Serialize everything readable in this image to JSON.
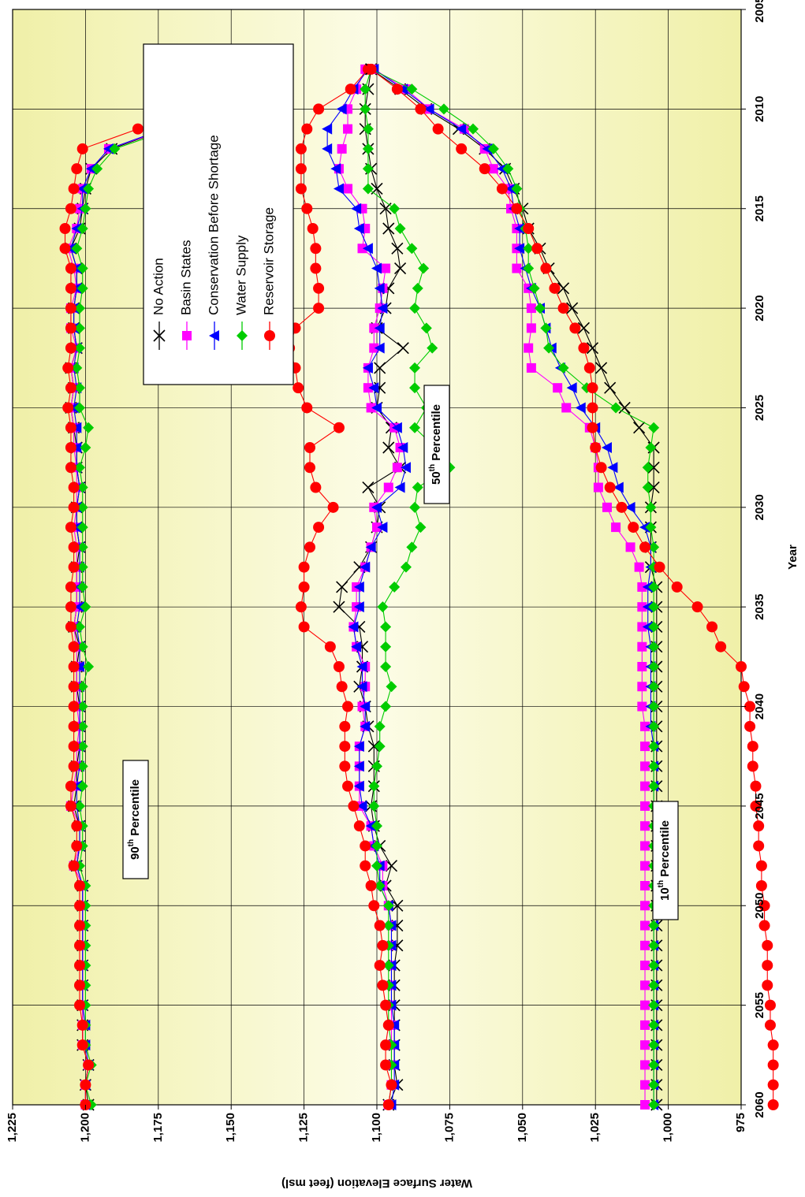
{
  "chart_data": {
    "type": "line",
    "title": "",
    "xlabel": "Year",
    "ylabel": "Water Surface Elevation (feet msl)",
    "xlim": [
      2005,
      2060
    ],
    "ylim": [
      975,
      1225
    ],
    "x_ticks": [
      "2005",
      "2010",
      "2015",
      "2020",
      "2025",
      "2030",
      "2035",
      "2040",
      "2045",
      "2050",
      "2055",
      "2060"
    ],
    "y_ticks": [
      "975",
      "1,000",
      "1,025",
      "1,050",
      "1,075",
      "1,100",
      "1,125",
      "1,150",
      "1,175",
      "1,200",
      "1,225"
    ],
    "grid": true,
    "orientation": "rotated-90-clockwise",
    "legend_position": "top-right",
    "annotations": [
      {
        "base": "90",
        "sup": "th",
        "rest": " Percentile"
      },
      {
        "base": "50",
        "sup": "th",
        "rest": " Percentile"
      },
      {
        "base": "10",
        "sup": "th",
        "rest": " Percentile"
      }
    ],
    "series_styles": [
      {
        "name": "No Action",
        "color": "#000000",
        "marker": "x"
      },
      {
        "name": "Basin States",
        "color": "#ff00ff",
        "marker": "square"
      },
      {
        "name": "Conservation Before Shortage",
        "color": "#0000ff",
        "marker": "triangle"
      },
      {
        "name": "Water Supply",
        "color": "#00cc00",
        "marker": "diamond"
      },
      {
        "name": "Reservoir Storage",
        "color": "#ff0000",
        "marker": "circle"
      }
    ],
    "x": [
      2008,
      2009,
      2010,
      2011,
      2012,
      2013,
      2014,
      2015,
      2016,
      2017,
      2018,
      2019,
      2020,
      2021,
      2022,
      2023,
      2024,
      2025,
      2026,
      2027,
      2028,
      2029,
      2030,
      2031,
      2032,
      2033,
      2034,
      2035,
      2036,
      2037,
      2038,
      2039,
      2040,
      2041,
      2042,
      2043,
      2044,
      2045,
      2046,
      2047,
      2048,
      2049,
      2050,
      2051,
      2052,
      2053,
      2054,
      2055,
      2056,
      2057,
      2058,
      2059,
      2060
    ],
    "percentiles": [
      {
        "name": "90th Percentile",
        "series": [
          {
            "name": "No Action",
            "values": [
              1134,
              1154,
              1162,
              1172,
              1191,
              1198,
              1200,
              1201,
              1202,
              1205,
              1203,
              1203,
              1204,
              1204,
              1203,
              1205,
              1204,
              1205,
              1204,
              1203,
              1203,
              1202,
              1203,
              1203,
              1202,
              1203,
              1203,
              1203,
              1204,
              1202,
              1203,
              1203,
              1202,
              1202,
              1202,
              1203,
              1203,
              1204,
              1202,
              1202,
              1203,
              1201,
              1201,
              1201,
              1201,
              1201,
              1201,
              1201,
              1201,
              1201,
              1199,
              1200,
              1199
            ]
          },
          {
            "name": "Basin States",
            "values": [
              1135,
              1155,
              1161,
              1172,
              1192,
              1198,
              1201,
              1202,
              1203,
              1206,
              1204,
              1203,
              1205,
              1205,
              1203,
              1205,
              1204,
              1205,
              1204,
              1204,
              1203,
              1203,
              1203,
              1204,
              1203,
              1203,
              1203,
              1203,
              1204,
              1203,
              1203,
              1203,
              1203,
              1202,
              1203,
              1203,
              1204,
              1205,
              1202,
              1202,
              1204,
              1201,
              1201,
              1201,
              1201,
              1201,
              1201,
              1201,
              1201,
              1201,
              1199,
              1200,
              1200
            ]
          },
          {
            "name": "Conservation Before Shortage",
            "values": [
              1136,
              1155,
              1161,
              1173,
              1192,
              1198,
              1201,
              1201,
              1203,
              1205,
              1203,
              1203,
              1204,
              1204,
              1203,
              1204,
              1203,
              1204,
              1203,
              1203,
              1203,
              1202,
              1203,
              1203,
              1202,
              1202,
              1202,
              1202,
              1203,
              1202,
              1202,
              1202,
              1202,
              1202,
              1202,
              1202,
              1203,
              1203,
              1202,
              1202,
              1203,
              1201,
              1201,
              1201,
              1201,
              1201,
              1201,
              1201,
              1200,
              1200,
              1199,
              1200,
              1200
            ]
          },
          {
            "name": "Water Supply",
            "values": [
              1133,
              1153,
              1158,
              1170,
              1190,
              1196,
              1199,
              1200,
              1201,
              1203,
              1201,
              1201,
              1202,
              1202,
              1202,
              1203,
              1202,
              1202,
              1199,
              1200,
              1202,
              1201,
              1201,
              1201,
              1201,
              1201,
              1201,
              1200,
              1202,
              1201,
              1199,
              1201,
              1201,
              1201,
              1201,
              1201,
              1201,
              1202,
              1201,
              1201,
              1202,
              1200,
              1200,
              1200,
              1200,
              1200,
              1200,
              1200,
              1200,
              1200,
              1198,
              1200,
              1198
            ]
          },
          {
            "name": "Reservoir Storage",
            "values": [
              1135,
              1157,
              1165,
              1182,
              1201,
              1203,
              1204,
              1205,
              1207,
              1207,
              1205,
              1205,
              1205,
              1205,
              1205,
              1206,
              1205,
              1206,
              1205,
              1205,
              1205,
              1204,
              1204,
              1205,
              1204,
              1204,
              1205,
              1205,
              1205,
              1204,
              1204,
              1204,
              1204,
              1204,
              1204,
              1204,
              1205,
              1205,
              1203,
              1203,
              1204,
              1202,
              1202,
              1202,
              1202,
              1202,
              1202,
              1202,
              1201,
              1201,
              1199,
              1200,
              1200
            ]
          }
        ]
      },
      {
        "name": "50th Percentile",
        "series": [
          {
            "name": "No Action",
            "values": [
              1102,
              1103,
              1104,
              1104,
              1103,
              1102,
              1100,
              1097,
              1096,
              1093,
              1092,
              1096,
              1097,
              1100,
              1091,
              1099,
              1099,
              1100,
              1095,
              1096,
              1092,
              1103,
              1099,
              1100,
              1102,
              1106,
              1112,
              1113,
              1106,
              1105,
              1105,
              1106,
              1104,
              1103,
              1101,
              1101,
              1101,
              1102,
              1101,
              1099,
              1095,
              1097,
              1093,
              1093,
              1093,
              1094,
              1094,
              1094,
              1094,
              1094,
              1094,
              1093,
              1096
            ]
          },
          {
            "name": "Basin States",
            "values": [
              1104,
              1107,
              1110,
              1110,
              1112,
              1113,
              1110,
              1105,
              1104,
              1105,
              1097,
              1098,
              1099,
              1101,
              1101,
              1103,
              1103,
              1102,
              1094,
              1092,
              1093,
              1096,
              1101,
              1100,
              1102,
              1104,
              1107,
              1107,
              1108,
              1107,
              1104,
              1104,
              1105,
              1104,
              1106,
              1106,
              1106,
              1106,
              1102,
              1101,
              1098,
              1098,
              1096,
              1095,
              1095,
              1095,
              1095,
              1095,
              1095,
              1095,
              1095,
              1095,
              1096
            ]
          },
          {
            "name": "Conservation Before Shortage",
            "values": [
              1103,
              1108,
              1112,
              1117,
              1117,
              1114,
              1113,
              1107,
              1106,
              1103,
              1100,
              1099,
              1098,
              1099,
              1099,
              1103,
              1101,
              1100,
              1093,
              1091,
              1090,
              1092,
              1100,
              1098,
              1102,
              1104,
              1106,
              1106,
              1108,
              1107,
              1105,
              1105,
              1104,
              1104,
              1106,
              1106,
              1106,
              1105,
              1102,
              1101,
              1099,
              1099,
              1096,
              1095,
              1095,
              1095,
              1095,
              1095,
              1094,
              1094,
              1094,
              1094,
              1095
            ]
          },
          {
            "name": "Water Supply",
            "values": [
              1102,
              1104,
              1104,
              1103,
              1103,
              1103,
              1103,
              1094,
              1092,
              1088,
              1084,
              1086,
              1087,
              1083,
              1081,
              1087,
              1087,
              1083,
              1087,
              1080,
              1075,
              1086,
              1087,
              1085,
              1088,
              1090,
              1094,
              1098,
              1097,
              1097,
              1097,
              1095,
              1097,
              1099,
              1099,
              1100,
              1101,
              1101,
              1100,
              1100,
              1100,
              1099,
              1096,
              1096,
              1096,
              1096,
              1096,
              1096,
              1096,
              1095,
              1095,
              1095,
              1096
            ]
          },
          {
            "name": "Reservoir Storage",
            "values": [
              1103,
              1109,
              1120,
              1124,
              1126,
              1126,
              1126,
              1124,
              1122,
              1121,
              1121,
              1120,
              1120,
              1128,
              1130,
              1128,
              1127,
              1124,
              1113,
              1123,
              1123,
              1121,
              1115,
              1120,
              1123,
              1125,
              1125,
              1126,
              1125,
              1116,
              1113,
              1112,
              1110,
              1111,
              1111,
              1111,
              1110,
              1108,
              1106,
              1104,
              1104,
              1102,
              1101,
              1099,
              1098,
              1099,
              1098,
              1097,
              1096,
              1097,
              1097,
              1095,
              1096
            ]
          }
        ]
      },
      {
        "name": "10th Percentile",
        "series": [
          {
            "name": "No Action",
            "values": [
              1102,
              1092,
              1083,
              1072,
              1063,
              1056,
              1053,
              1050,
              1048,
              1044,
              1041,
              1036,
              1033,
              1029,
              1026,
              1023,
              1020,
              1015,
              1010,
              1005,
              1005,
              1005,
              1006,
              1006,
              1006,
              1006,
              1004,
              1004,
              1004,
              1004,
              1004,
              1004,
              1004,
              1004,
              1004,
              1004,
              1004,
              1004,
              1004,
              1004,
              1004,
              1004,
              1004,
              1004,
              1004,
              1004,
              1004,
              1004,
              1004,
              1004,
              1004,
              1004,
              1004
            ]
          },
          {
            "name": "Basin States",
            "values": [
              1101,
              1090,
              1082,
              1070,
              1063,
              1060,
              1055,
              1054,
              1052,
              1052,
              1052,
              1048,
              1047,
              1047,
              1048,
              1047,
              1038,
              1035,
              1027,
              1025,
              1024,
              1024,
              1021,
              1018,
              1013,
              1010,
              1009,
              1009,
              1009,
              1009,
              1009,
              1009,
              1009,
              1008,
              1008,
              1008,
              1008,
              1008,
              1008,
              1008,
              1008,
              1008,
              1008,
              1008,
              1008,
              1008,
              1008,
              1008,
              1008,
              1008,
              1008,
              1008,
              1008
            ]
          },
          {
            "name": "Conservation Before Shortage",
            "values": [
              1101,
              1091,
              1082,
              1071,
              1062,
              1057,
              1054,
              1053,
              1051,
              1051,
              1049,
              1047,
              1044,
              1042,
              1040,
              1037,
              1033,
              1030,
              1025,
              1021,
              1019,
              1017,
              1013,
              1008,
              1006,
              1006,
              1007,
              1007,
              1007,
              1006,
              1006,
              1006,
              1006,
              1006,
              1005,
              1005,
              1005,
              1005,
              1005,
              1005,
              1005,
              1005,
              1005,
              1005,
              1005,
              1005,
              1005,
              1005,
              1005,
              1005,
              1005,
              1005,
              1005
            ]
          },
          {
            "name": "Water Supply",
            "values": [
              1102,
              1088,
              1077,
              1067,
              1060,
              1055,
              1052,
              1051,
              1049,
              1048,
              1048,
              1046,
              1044,
              1042,
              1041,
              1036,
              1028,
              1018,
              1005,
              1006,
              1007,
              1007,
              1006,
              1006,
              1005,
              1005,
              1005,
              1005,
              1005,
              1005,
              1005,
              1005,
              1005,
              1005,
              1005,
              1005,
              1005,
              1005,
              1005,
              1005,
              1005,
              1005,
              1005,
              1005,
              1005,
              1005,
              1005,
              1005,
              1005,
              1005,
              1005,
              1005,
              1005
            ]
          },
          {
            "name": "Reservoir Storage",
            "values": [
              1102,
              1093,
              1085,
              1079,
              1071,
              1063,
              1057,
              1052,
              1048,
              1045,
              1042,
              1039,
              1036,
              1032,
              1029,
              1027,
              1026,
              1026,
              1026,
              1025,
              1023,
              1020,
              1016,
              1012,
              1008,
              1003,
              997,
              990,
              985,
              982,
              975,
              974,
              972,
              972,
              971,
              971,
              970,
              970,
              969,
              969,
              968,
              968,
              967,
              967,
              966,
              966,
              966,
              965,
              965,
              964,
              964,
              964,
              964
            ]
          }
        ]
      }
    ]
  }
}
